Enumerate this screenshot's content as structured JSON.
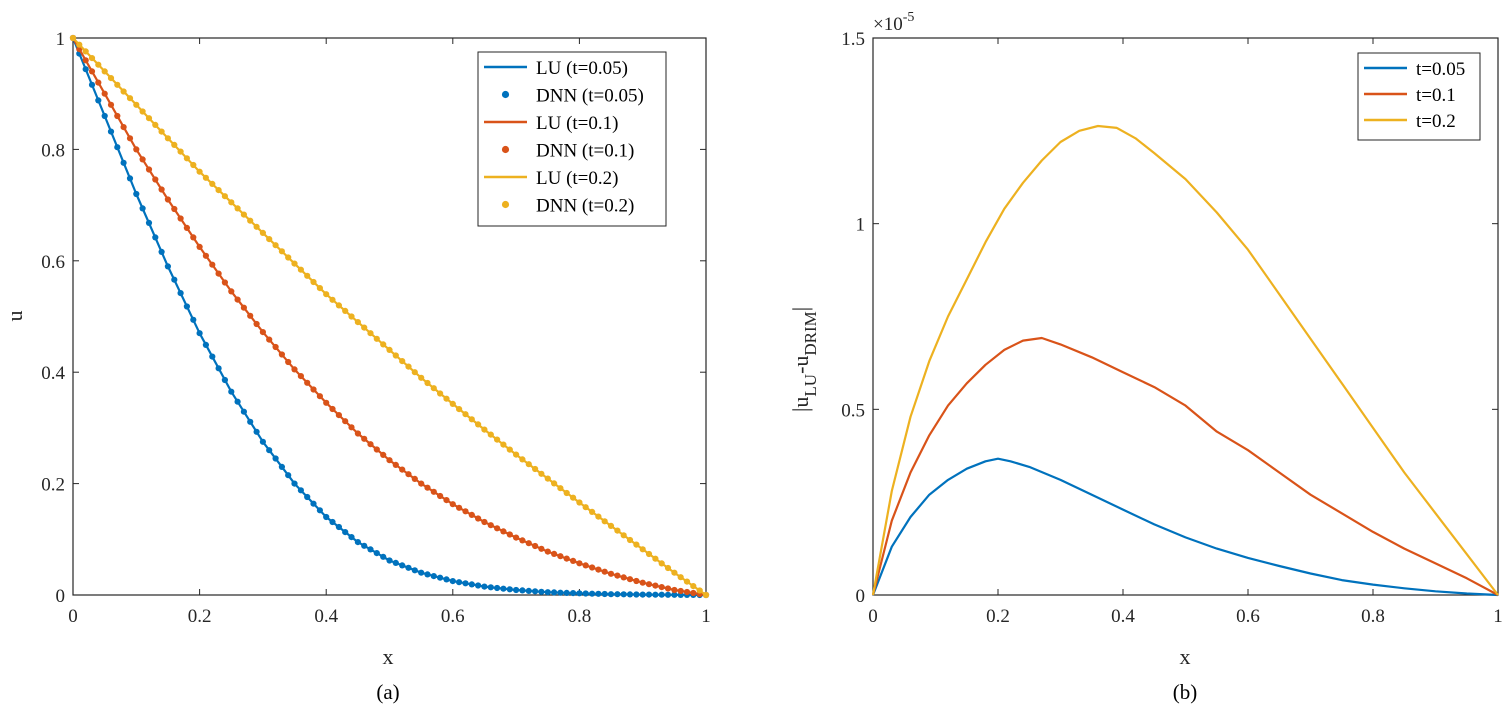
{
  "chart_data": [
    {
      "type": "line",
      "id": "a",
      "caption": "(a)",
      "xlabel": "x",
      "ylabel": "u",
      "xlim": [
        0,
        1
      ],
      "ylim": [
        0,
        1
      ],
      "xticks": [
        "0",
        "0.2",
        "0.4",
        "0.6",
        "0.8",
        "1"
      ],
      "yticks": [
        "0",
        "0.2",
        "0.4",
        "0.6",
        "0.8",
        "1"
      ],
      "legend_position": "top-right",
      "series": [
        {
          "name": "LU (t=0.05)",
          "style": "line",
          "color": "#0072BD",
          "x": [
            0,
            0.05,
            0.1,
            0.15,
            0.2,
            0.25,
            0.3,
            0.35,
            0.4,
            0.45,
            0.5,
            0.55,
            0.6,
            0.65,
            0.7,
            0.75,
            0.8,
            0.85,
            0.9,
            0.95,
            1
          ],
          "y": [
            1,
            0.86,
            0.72,
            0.59,
            0.47,
            0.365,
            0.275,
            0.2,
            0.14,
            0.095,
            0.062,
            0.04,
            0.025,
            0.015,
            0.009,
            0.005,
            0.003,
            0.0015,
            0.0008,
            0.0003,
            0
          ]
        },
        {
          "name": "DNN (t=0.05)",
          "style": "dots",
          "color": "#0072BD",
          "x": [
            0,
            0.05,
            0.1,
            0.15,
            0.2,
            0.25,
            0.3,
            0.35,
            0.4,
            0.45,
            0.5,
            0.55,
            0.6,
            0.65,
            0.7,
            0.75,
            0.8,
            0.85,
            0.9,
            0.95,
            1
          ],
          "y": [
            1,
            0.86,
            0.72,
            0.59,
            0.47,
            0.365,
            0.275,
            0.2,
            0.14,
            0.095,
            0.062,
            0.04,
            0.025,
            0.015,
            0.009,
            0.005,
            0.003,
            0.0015,
            0.0008,
            0.0003,
            0
          ]
        },
        {
          "name": "LU (t=0.1)",
          "style": "line",
          "color": "#D95319",
          "x": [
            0,
            0.05,
            0.1,
            0.15,
            0.2,
            0.25,
            0.3,
            0.35,
            0.4,
            0.45,
            0.5,
            0.55,
            0.6,
            0.65,
            0.7,
            0.75,
            0.8,
            0.85,
            0.9,
            0.95,
            1
          ],
          "y": [
            1,
            0.9,
            0.8,
            0.71,
            0.625,
            0.545,
            0.472,
            0.405,
            0.345,
            0.29,
            0.242,
            0.2,
            0.163,
            0.131,
            0.103,
            0.078,
            0.057,
            0.038,
            0.022,
            0.009,
            0
          ]
        },
        {
          "name": "DNN (t=0.1)",
          "style": "dots",
          "color": "#D95319",
          "x": [
            0,
            0.05,
            0.1,
            0.15,
            0.2,
            0.25,
            0.3,
            0.35,
            0.4,
            0.45,
            0.5,
            0.55,
            0.6,
            0.65,
            0.7,
            0.75,
            0.8,
            0.85,
            0.9,
            0.95,
            1
          ],
          "y": [
            1,
            0.9,
            0.8,
            0.71,
            0.625,
            0.545,
            0.472,
            0.405,
            0.345,
            0.29,
            0.242,
            0.2,
            0.163,
            0.131,
            0.103,
            0.078,
            0.057,
            0.038,
            0.022,
            0.009,
            0
          ]
        },
        {
          "name": "LU (t=0.2)",
          "style": "line",
          "color": "#EDB120",
          "x": [
            0,
            0.05,
            0.1,
            0.15,
            0.2,
            0.25,
            0.3,
            0.35,
            0.4,
            0.45,
            0.5,
            0.55,
            0.6,
            0.65,
            0.7,
            0.75,
            0.8,
            0.85,
            0.9,
            0.95,
            1
          ],
          "y": [
            1,
            0.94,
            0.88,
            0.82,
            0.76,
            0.705,
            0.65,
            0.595,
            0.54,
            0.49,
            0.44,
            0.39,
            0.343,
            0.297,
            0.252,
            0.209,
            0.166,
            0.124,
            0.082,
            0.04,
            0
          ]
        },
        {
          "name": "DNN (t=0.2)",
          "style": "dots",
          "color": "#EDB120",
          "x": [
            0,
            0.05,
            0.1,
            0.15,
            0.2,
            0.25,
            0.3,
            0.35,
            0.4,
            0.45,
            0.5,
            0.55,
            0.6,
            0.65,
            0.7,
            0.75,
            0.8,
            0.85,
            0.9,
            0.95,
            1
          ],
          "y": [
            1,
            0.94,
            0.88,
            0.82,
            0.76,
            0.705,
            0.65,
            0.595,
            0.54,
            0.49,
            0.44,
            0.39,
            0.343,
            0.297,
            0.252,
            0.209,
            0.166,
            0.124,
            0.082,
            0.04,
            0
          ]
        }
      ]
    },
    {
      "type": "line",
      "id": "b",
      "caption": "(b)",
      "xlabel": "x",
      "ylabel_main": "|u",
      "ylabel_sub1": "LU",
      "ylabel_mid": "-u",
      "ylabel_sub2": "DRIM",
      "ylabel_end": "|",
      "exponent_base": "×10",
      "exponent_power": "-5",
      "xlim": [
        0,
        1
      ],
      "ylim": [
        0,
        1.5
      ],
      "xticks": [
        "0",
        "0.2",
        "0.4",
        "0.6",
        "0.8",
        "1"
      ],
      "yticks": [
        "0",
        "0.5",
        "1",
        "1.5"
      ],
      "legend_position": "top-right",
      "series": [
        {
          "name": "t=0.05",
          "style": "line",
          "color": "#0072BD",
          "x": [
            0,
            0.03,
            0.06,
            0.09,
            0.12,
            0.15,
            0.18,
            0.2,
            0.22,
            0.25,
            0.3,
            0.35,
            0.4,
            0.45,
            0.5,
            0.55,
            0.6,
            0.65,
            0.7,
            0.75,
            0.8,
            0.85,
            0.9,
            0.95,
            1
          ],
          "y": [
            0,
            0.13,
            0.21,
            0.27,
            0.31,
            0.34,
            0.36,
            0.367,
            0.36,
            0.345,
            0.31,
            0.27,
            0.23,
            0.19,
            0.155,
            0.125,
            0.1,
            0.078,
            0.058,
            0.04,
            0.028,
            0.018,
            0.01,
            0.004,
            0
          ]
        },
        {
          "name": "t=0.1",
          "style": "line",
          "color": "#D95319",
          "x": [
            0,
            0.03,
            0.06,
            0.09,
            0.12,
            0.15,
            0.18,
            0.21,
            0.24,
            0.27,
            0.3,
            0.35,
            0.4,
            0.45,
            0.5,
            0.55,
            0.6,
            0.65,
            0.7,
            0.75,
            0.8,
            0.85,
            0.9,
            0.95,
            1
          ],
          "y": [
            0,
            0.2,
            0.33,
            0.43,
            0.51,
            0.57,
            0.62,
            0.66,
            0.685,
            0.692,
            0.675,
            0.64,
            0.6,
            0.56,
            0.51,
            0.44,
            0.39,
            0.33,
            0.27,
            0.22,
            0.17,
            0.125,
            0.085,
            0.045,
            0
          ]
        },
        {
          "name": "t=0.2",
          "style": "line",
          "color": "#EDB120",
          "x": [
            0,
            0.03,
            0.06,
            0.09,
            0.12,
            0.15,
            0.18,
            0.21,
            0.24,
            0.27,
            0.3,
            0.33,
            0.36,
            0.39,
            0.42,
            0.45,
            0.5,
            0.55,
            0.6,
            0.65,
            0.7,
            0.75,
            0.8,
            0.85,
            0.9,
            0.95,
            1
          ],
          "y": [
            0,
            0.28,
            0.48,
            0.63,
            0.75,
            0.85,
            0.95,
            1.04,
            1.11,
            1.17,
            1.22,
            1.25,
            1.263,
            1.258,
            1.23,
            1.19,
            1.12,
            1.03,
            0.93,
            0.81,
            0.69,
            0.57,
            0.45,
            0.33,
            0.22,
            0.11,
            0
          ]
        }
      ]
    }
  ]
}
